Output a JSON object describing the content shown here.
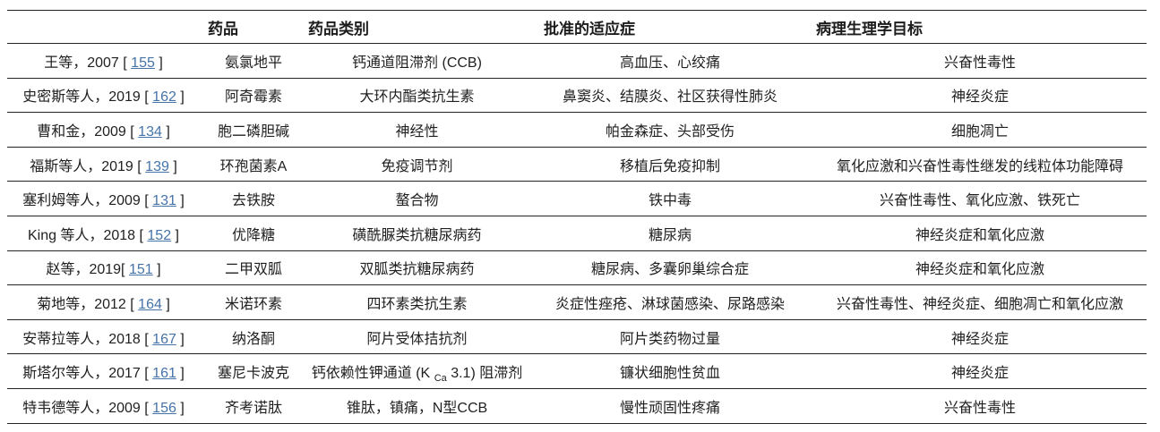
{
  "page": {
    "background": "#ffffff",
    "text_color": "#1f1f1f",
    "rule_color": "#232323",
    "link_color": "#4673a8"
  },
  "table": {
    "headers": {
      "citation": "",
      "drug": "药品",
      "drug_class": "药品类别",
      "indications": "批准的适应症",
      "targets": "病理生理学目标"
    },
    "rows": [
      {
        "citation_prefix": "王等，2007 [ ",
        "ref": "155",
        "citation_suffix": " ]",
        "drug": "氨氯地平",
        "drug_class": "钙通道阻滞剂 (CCB)",
        "indications": "高血压、心绞痛",
        "targets": "兴奋性毒性"
      },
      {
        "citation_prefix": "史密斯等人，2019 [ ",
        "ref": "162",
        "citation_suffix": " ]",
        "drug": "阿奇霉素",
        "drug_class": "大环内酯类抗生素",
        "indications": "鼻窦炎、结膜炎、社区获得性肺炎",
        "targets": "神经炎症"
      },
      {
        "citation_prefix": "曹和金，2009 [ ",
        "ref": "134",
        "citation_suffix": " ]",
        "drug": "胞二磷胆碱",
        "drug_class": "神经性",
        "indications": "帕金森症、头部受伤",
        "targets": "细胞凋亡"
      },
      {
        "citation_prefix": "福斯等人，2019 [ ",
        "ref": "139",
        "citation_suffix": " ]",
        "drug": "环孢菌素A",
        "drug_class": "免疫调节剂",
        "indications": "移植后免疫抑制",
        "targets": "氧化应激和兴奋性毒性继发的线粒体功能障碍"
      },
      {
        "citation_prefix": "塞利姆等人，2009 [ ",
        "ref": "131",
        "citation_suffix": " ]",
        "drug": "去铁胺",
        "drug_class": "螯合物",
        "indications": "铁中毒",
        "targets": "兴奋性毒性、氧化应激、铁死亡"
      },
      {
        "citation_prefix": "King 等人，2018 [ ",
        "ref": "152",
        "citation_suffix": " ]",
        "drug": "优降糖",
        "drug_class": "磺酰脲类抗糖尿病药",
        "indications": "糖尿病",
        "targets": "神经炎症和氧化应激"
      },
      {
        "citation_prefix": "赵等，2019[ ",
        "ref": "151",
        "citation_suffix": " ]",
        "drug": "二甲双胍",
        "drug_class": "双胍类抗糖尿病药",
        "indications": "糖尿病、多囊卵巢综合症",
        "targets": "神经炎症和氧化应激"
      },
      {
        "citation_prefix": "菊地等，2012 [ ",
        "ref": "164",
        "citation_suffix": " ]",
        "drug": "米诺环素",
        "drug_class": "四环素类抗生素",
        "indications": "炎症性痤疮、淋球菌感染、尿路感染",
        "targets": "兴奋性毒性、神经炎症、细胞凋亡和氧化应激"
      },
      {
        "citation_prefix": "安蒂拉等人，2018 [ ",
        "ref": "167",
        "citation_suffix": " ]",
        "drug": "纳洛酮",
        "drug_class": "阿片受体拮抗剂",
        "indications": "阿片类药物过量",
        "targets": "神经炎症"
      },
      {
        "citation_prefix": "斯塔尔等人，2017 [ ",
        "ref": "161",
        "citation_suffix": " ]",
        "drug": "塞尼卡波克",
        "drug_class": "钙依赖性钾通道 (K ",
        "drug_class_sub": "Ca",
        "drug_class_tail": " 3.1) 阻滞剂",
        "indications": "镰状细胞性贫血",
        "targets": "神经炎症"
      },
      {
        "citation_prefix": "特韦德等人，2009 [ ",
        "ref": "156",
        "citation_suffix": " ]",
        "drug": "齐考诺肽",
        "drug_class": "锥肽，镇痛，N型CCB",
        "indications": "慢性顽固性疼痛",
        "targets": "兴奋性毒性"
      }
    ]
  }
}
